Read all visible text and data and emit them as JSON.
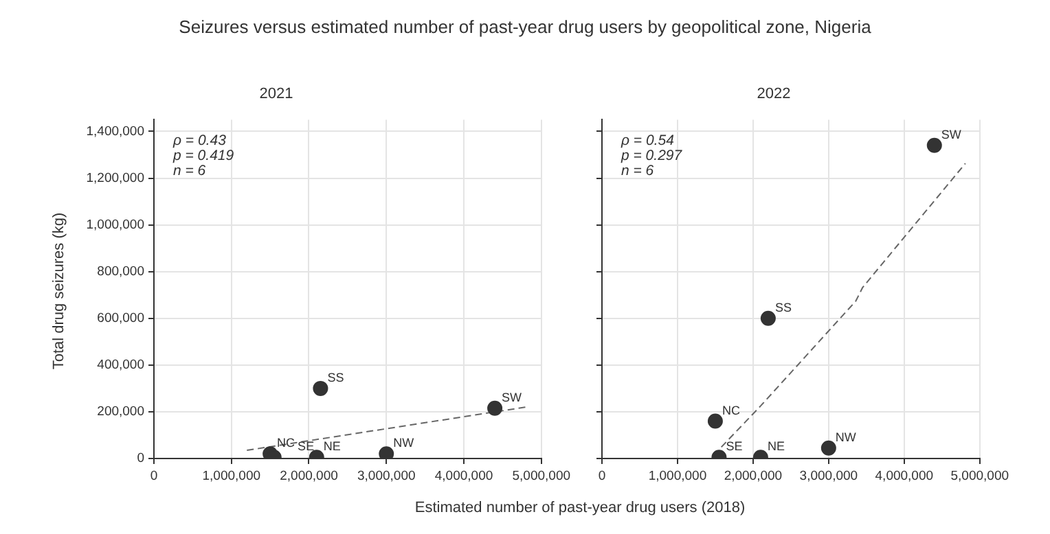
{
  "chart_data": [
    {
      "type": "scatter",
      "title": "2021",
      "xlabel": "Estimated number of past-year drug users (2018)",
      "ylabel": "Total drug seizures (kg)",
      "series": [
        {
          "type": "scatter",
          "color": "#333333",
          "marker": "circle",
          "x": [
            1500000,
            1550000,
            2100000,
            2150000,
            3000000,
            4400000
          ],
          "values": [
            20000,
            5000,
            5000,
            300000,
            20000,
            215000
          ]
        },
        {
          "type": "line",
          "color": "#666666",
          "line_style": "dashed",
          "marker": "none",
          "x": [
            1200000,
            4800000
          ],
          "values": [
            35000,
            220000
          ]
        }
      ],
      "xlim": [
        0,
        5000000
      ],
      "xticks": [
        {
          "value": 0,
          "label": "0"
        },
        {
          "value": 1000000,
          "label": "1,000,000"
        },
        {
          "value": 2000000,
          "label": "2,000,000"
        },
        {
          "value": 3000000,
          "label": "3,000,000"
        },
        {
          "value": 4000000,
          "label": "4,000,000"
        },
        {
          "value": 5000000,
          "label": "5,000,000"
        }
      ],
      "ylim": [
        0,
        1450000
      ],
      "yticks": [
        {
          "value": 0,
          "label": "0"
        },
        {
          "value": 200000,
          "label": "200,000"
        },
        {
          "value": 400000,
          "label": "400,000"
        },
        {
          "value": 600000,
          "label": "600,000"
        },
        {
          "value": 800000,
          "label": "800,000"
        },
        {
          "value": 1000000,
          "label": "1,000,000"
        },
        {
          "value": 1200000,
          "label": "1,200,000"
        },
        {
          "value": 1400000,
          "label": "1,400,000"
        }
      ],
      "grid": true,
      "annotations": [
        "Seizures versus estimated number of past-year drug users by geopolitical zone, Nigeria",
        "ρ = 0.43",
        "p = 0.419",
        "n = 6",
        {
          "text": "NC",
          "x": 1500000,
          "y": 20000
        },
        {
          "text": "SE",
          "x": 1550000,
          "y": 5000
        },
        {
          "text": "NE",
          "x": 2100000,
          "y": 5000
        },
        {
          "text": "SS",
          "x": 2150000,
          "y": 300000
        },
        {
          "text": "NW",
          "x": 3000000,
          "y": 20000
        },
        {
          "text": "SW",
          "x": 4400000,
          "y": 215000
        }
      ]
    },
    {
      "type": "scatter",
      "title": "2022",
      "tick_labels": "x",
      "series": [
        {
          "type": "scatter",
          "color": "#333333",
          "marker": "circle",
          "x": [
            1500000,
            1550000,
            2100000,
            2200000,
            3000000,
            4400000
          ],
          "values": [
            160000,
            5000,
            5000,
            600000,
            45000,
            1340000
          ]
        },
        {
          "type": "line",
          "color": "#666666",
          "line_style": "dashed",
          "marker": "none",
          "x": [
            1580000,
            2100000,
            3360000,
            3450000,
            4810000
          ],
          "values": [
            49000,
            225000,
            674000,
            732000,
            1263000
          ]
        }
      ],
      "xlim": [
        0,
        5000000
      ],
      "xticks": [
        {
          "value": 0,
          "label": "0"
        },
        {
          "value": 1000000,
          "label": "1,000,000"
        },
        {
          "value": 2000000,
          "label": "2,000,000"
        },
        {
          "value": 3000000,
          "label": "3,000,000"
        },
        {
          "value": 4000000,
          "label": "4,000,000"
        },
        {
          "value": 5000000,
          "label": "5,000,000"
        }
      ],
      "ylim": [
        0,
        1450000
      ],
      "yticks": [
        0,
        200000,
        400000,
        600000,
        800000,
        1000000,
        1200000,
        1400000
      ],
      "grid": true,
      "annotations": [
        "ρ = 0.54",
        "p = 0.297",
        "n = 6",
        {
          "text": "NC",
          "x": 1500000,
          "y": 160000
        },
        {
          "text": "SE",
          "x": 1550000,
          "y": 5000
        },
        {
          "text": "NE",
          "x": 2100000,
          "y": 5000
        },
        {
          "text": "SS",
          "x": 2200000,
          "y": 600000
        },
        {
          "text": "NW",
          "x": 3000000,
          "y": 45000
        },
        {
          "text": "SW",
          "x": 4400000,
          "y": 1340000
        }
      ]
    }
  ]
}
